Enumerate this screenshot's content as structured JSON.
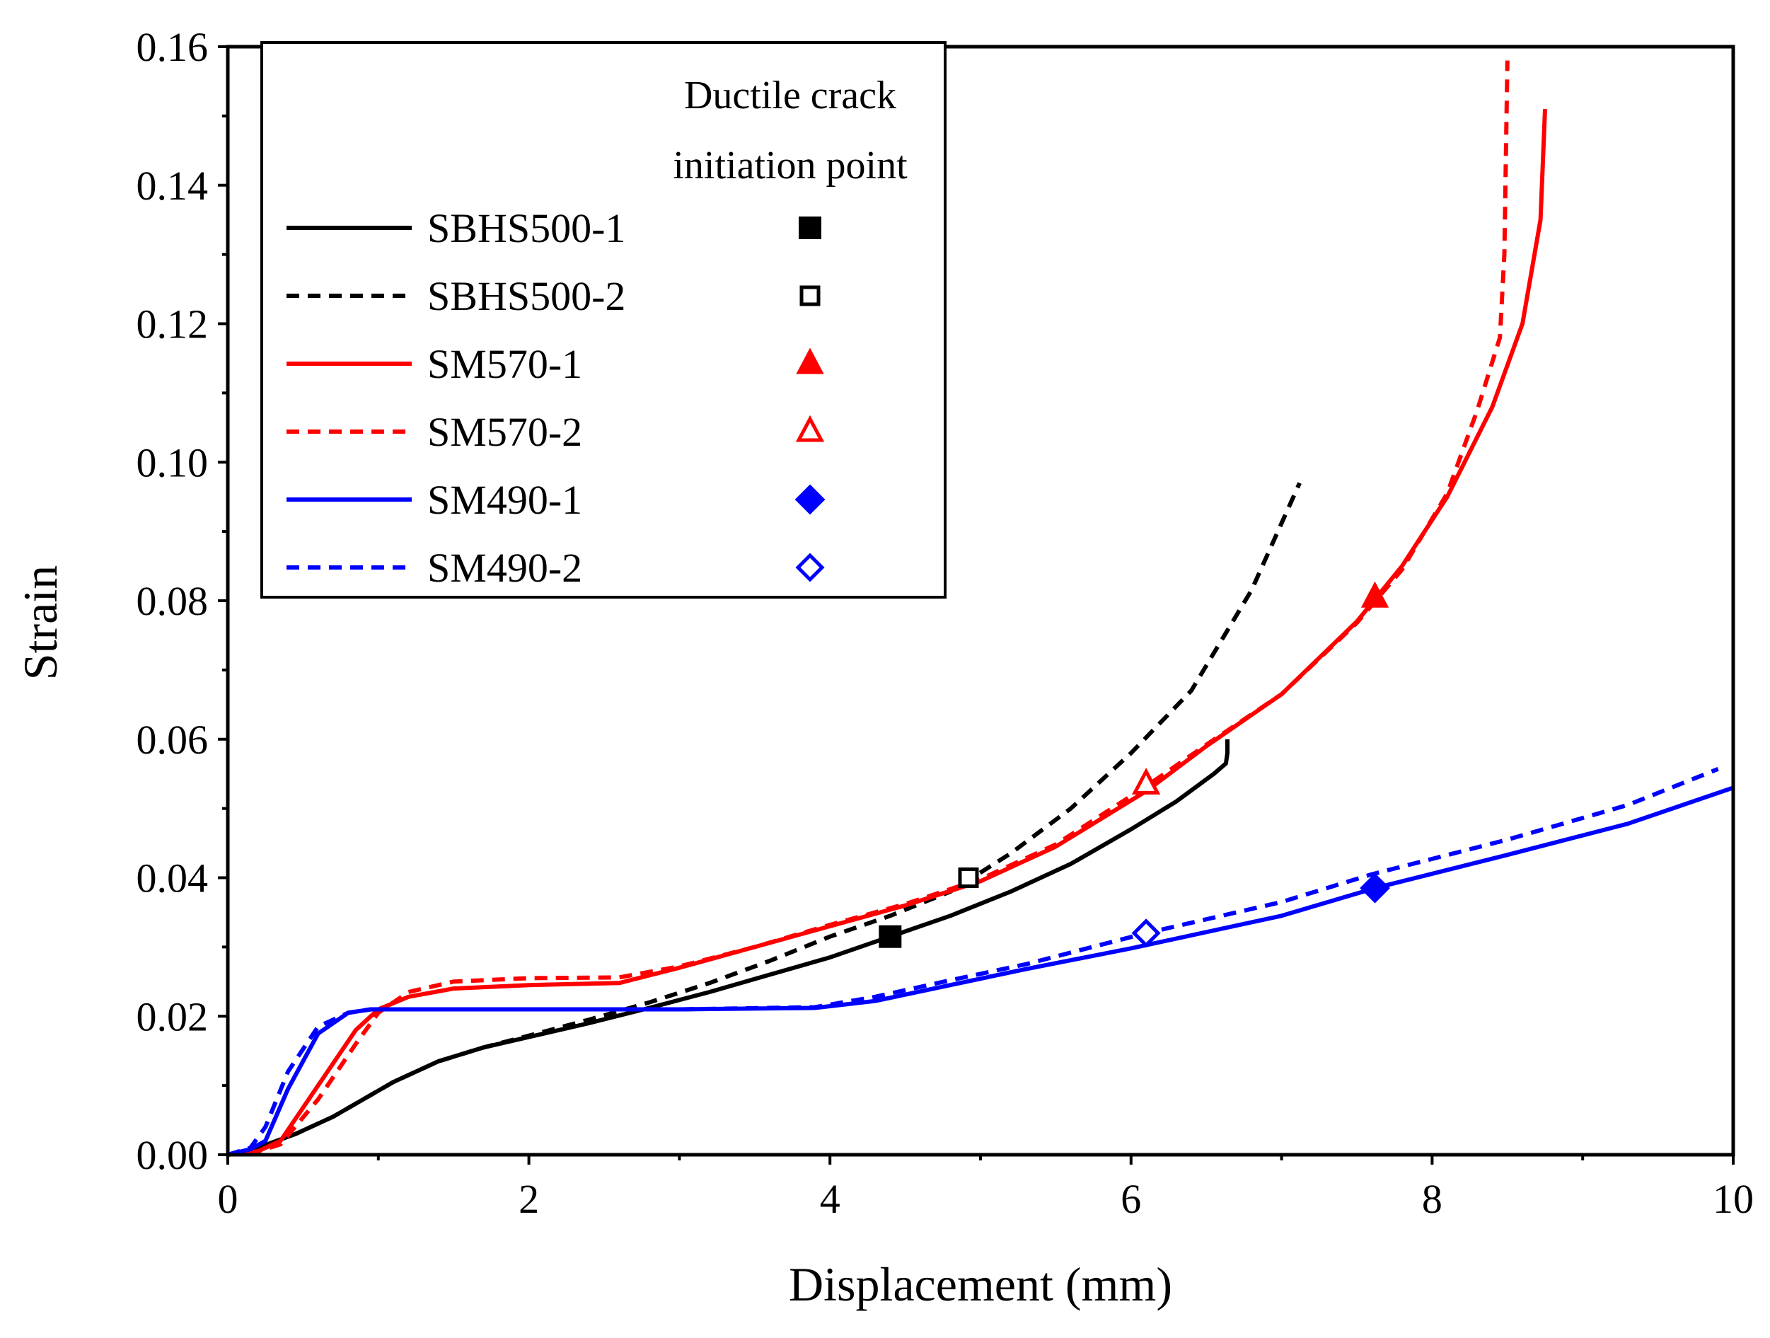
{
  "chart_data": {
    "type": "line",
    "title": "",
    "xlabel": "Displacement (mm)",
    "ylabel": "Strain",
    "xlim": [
      0,
      10
    ],
    "ylim": [
      0,
      0.16
    ],
    "xticks": [
      0,
      2,
      4,
      6,
      8,
      10
    ],
    "xtick_labels": [
      "0",
      "2",
      "4",
      "6",
      "8",
      "10"
    ],
    "yticks": [
      0,
      0.02,
      0.04,
      0.06,
      0.08,
      0.1,
      0.12,
      0.14,
      0.16
    ],
    "ytick_labels": [
      "0.00",
      "0.02",
      "0.04",
      "0.06",
      "0.08",
      "0.10",
      "0.12",
      "0.14",
      "0.16"
    ],
    "grid": false,
    "legend": {
      "placement": "top-left",
      "header": [
        "Ductile crack",
        "initiation point"
      ]
    },
    "series": [
      {
        "name": "SBHS500-1",
        "color": "#000000",
        "style": "solid",
        "marker": "square-filled",
        "crack_point": {
          "x": 4.4,
          "y": 0.0315
        },
        "x": [
          0,
          0.2,
          0.45,
          0.7,
          0.9,
          1.1,
          1.4,
          1.7,
          2.0,
          2.4,
          2.8,
          3.2,
          3.6,
          4.0,
          4.4,
          4.8,
          5.2,
          5.6,
          6.0,
          6.3,
          6.55,
          6.63,
          6.64,
          6.64
        ],
        "y": [
          0,
          0.001,
          0.003,
          0.0055,
          0.008,
          0.0105,
          0.0135,
          0.0155,
          0.017,
          0.019,
          0.0212,
          0.0235,
          0.026,
          0.0285,
          0.0315,
          0.0345,
          0.038,
          0.042,
          0.047,
          0.051,
          0.055,
          0.0565,
          0.058,
          0.06
        ]
      },
      {
        "name": "SBHS500-2",
        "color": "#000000",
        "style": "dashed",
        "marker": "square-open",
        "crack_point": {
          "x": 4.92,
          "y": 0.04
        },
        "x": [
          0,
          0.2,
          0.45,
          0.7,
          0.9,
          1.1,
          1.4,
          1.7,
          2.0,
          2.4,
          2.8,
          3.2,
          3.6,
          4.0,
          4.4,
          4.8,
          5.2,
          5.6,
          6.0,
          6.4,
          6.8,
          7.12
        ],
        "y": [
          0,
          0.001,
          0.003,
          0.0055,
          0.008,
          0.0105,
          0.0135,
          0.0155,
          0.0172,
          0.0195,
          0.022,
          0.0248,
          0.028,
          0.0315,
          0.0345,
          0.038,
          0.0435,
          0.05,
          0.058,
          0.067,
          0.0815,
          0.097
        ]
      },
      {
        "name": "SM570-1",
        "color": "#ff0000",
        "style": "solid",
        "marker": "triangle-filled",
        "crack_point": {
          "x": 7.62,
          "y": 0.0805
        },
        "x": [
          0,
          0.2,
          0.35,
          0.6,
          0.85,
          1.0,
          1.2,
          1.5,
          2.0,
          2.6,
          3.0,
          3.5,
          4.0,
          4.5,
          5.0,
          5.5,
          6.1,
          6.5,
          7.0,
          7.5,
          7.8,
          8.1,
          8.4,
          8.6,
          8.72,
          8.75
        ],
        "y": [
          0,
          0.0005,
          0.002,
          0.01,
          0.018,
          0.021,
          0.0228,
          0.024,
          0.0245,
          0.0248,
          0.027,
          0.03,
          0.033,
          0.036,
          0.0395,
          0.0445,
          0.0525,
          0.059,
          0.0665,
          0.077,
          0.085,
          0.095,
          0.108,
          0.12,
          0.135,
          0.151
        ]
      },
      {
        "name": "SM570-2",
        "color": "#ff0000",
        "style": "dashed",
        "marker": "triangle-open",
        "crack_point": {
          "x": 6.1,
          "y": 0.0535
        },
        "x": [
          0,
          0.2,
          0.35,
          0.6,
          0.85,
          1.0,
          1.2,
          1.5,
          2.0,
          2.6,
          3.0,
          3.5,
          4.0,
          4.5,
          5.0,
          5.5,
          6.1,
          6.5,
          7.0,
          7.5,
          7.8,
          8.1,
          8.3,
          8.45,
          8.48,
          8.5
        ],
        "y": [
          0,
          0.0005,
          0.0015,
          0.008,
          0.016,
          0.0205,
          0.0235,
          0.025,
          0.0255,
          0.0256,
          0.0272,
          0.03,
          0.0332,
          0.0362,
          0.0398,
          0.0448,
          0.0532,
          0.0592,
          0.0665,
          0.0768,
          0.0845,
          0.0955,
          0.1075,
          0.118,
          0.13,
          0.158
        ]
      },
      {
        "name": "SM490-1",
        "color": "#0000ff",
        "style": "solid",
        "marker": "diamond-filled",
        "crack_point": {
          "x": 7.62,
          "y": 0.0385
        },
        "x": [
          0,
          0.15,
          0.25,
          0.4,
          0.6,
          0.8,
          0.95,
          1.2,
          2.0,
          3.0,
          3.9,
          4.3,
          4.8,
          5.3,
          6.0,
          7.0,
          7.62,
          8.5,
          9.3,
          10.0
        ],
        "y": [
          0,
          0.0008,
          0.002,
          0.0095,
          0.0175,
          0.0205,
          0.021,
          0.021,
          0.021,
          0.021,
          0.0212,
          0.0222,
          0.0245,
          0.0268,
          0.0298,
          0.0345,
          0.0385,
          0.0433,
          0.0478,
          0.053
        ]
      },
      {
        "name": "SM490-2",
        "color": "#0000ff",
        "style": "dashed",
        "marker": "diamond-open",
        "crack_point": {
          "x": 6.1,
          "y": 0.032
        },
        "x": [
          0,
          0.15,
          0.25,
          0.4,
          0.6,
          0.8,
          0.95,
          1.2,
          2.0,
          3.0,
          3.9,
          4.3,
          4.8,
          5.3,
          6.1,
          7.0,
          7.6,
          8.5,
          9.3,
          9.9
        ],
        "y": [
          0,
          0.001,
          0.004,
          0.012,
          0.0185,
          0.0205,
          0.021,
          0.021,
          0.021,
          0.021,
          0.0213,
          0.0228,
          0.0252,
          0.0275,
          0.032,
          0.0365,
          0.0405,
          0.0455,
          0.0505,
          0.0557
        ]
      }
    ]
  }
}
